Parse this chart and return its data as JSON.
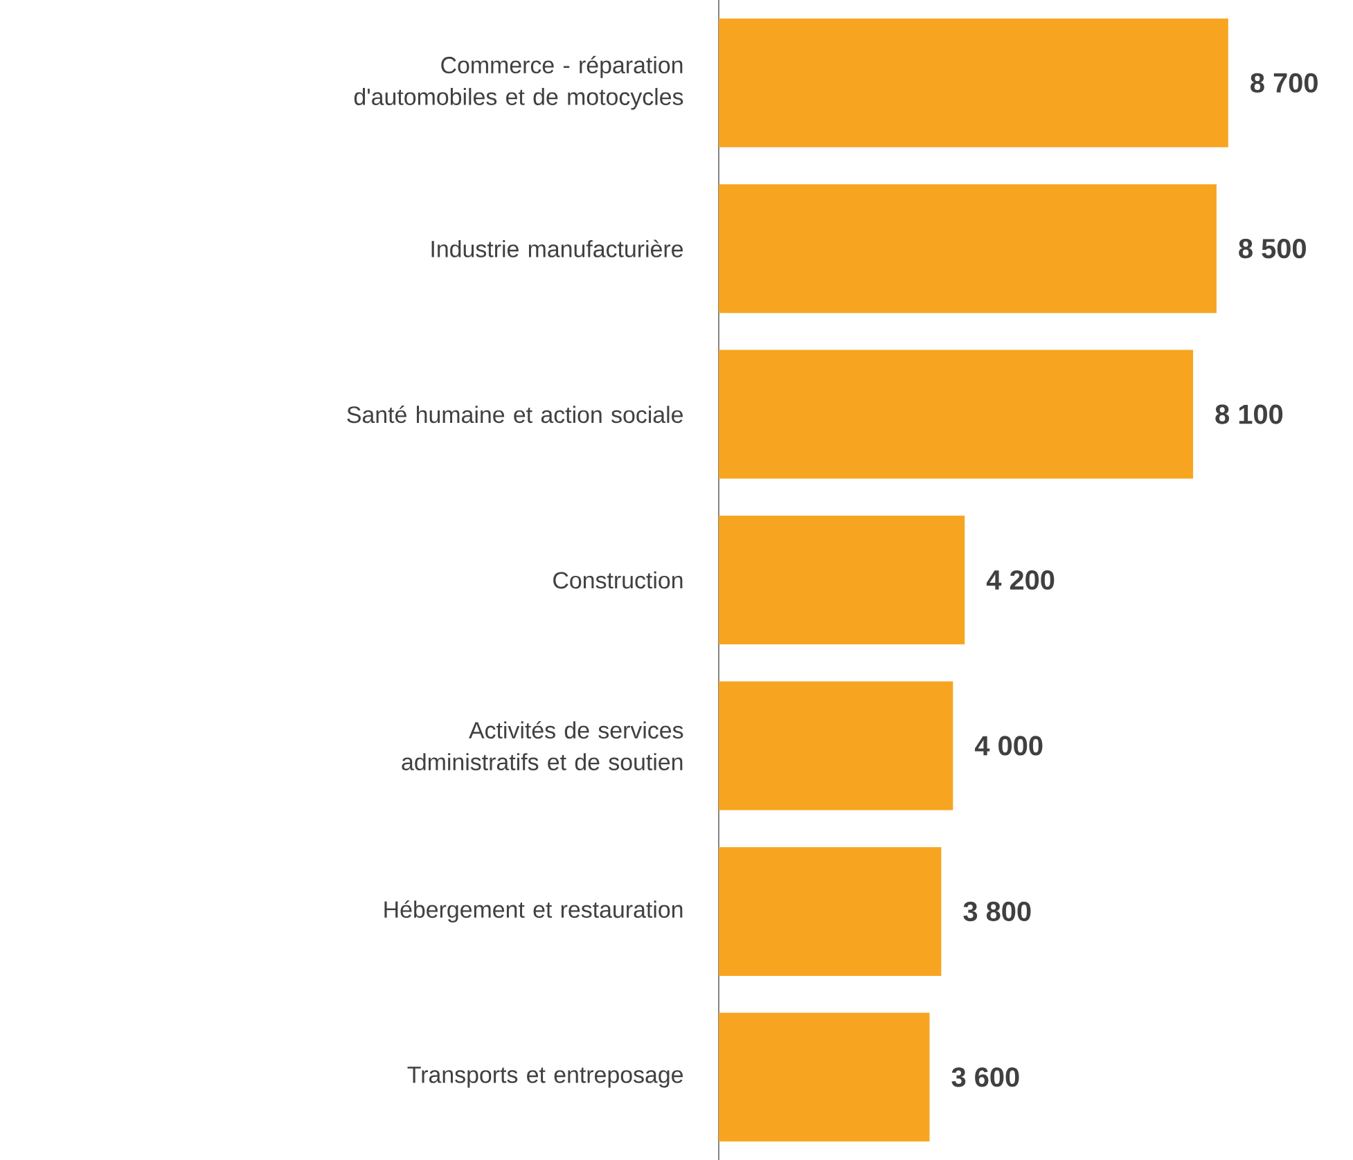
{
  "chart_data": {
    "type": "bar",
    "orientation": "horizontal",
    "categories": [
      "Commerce - réparation d'automobiles et de motocycles",
      "Industrie manufacturière",
      "Santé humaine et action sociale",
      "Construction",
      "Activités de services administratifs et de soutien",
      "Hébergement et restauration",
      "Transports et entreposage"
    ],
    "values": [
      8700,
      8500,
      8100,
      4200,
      4000,
      3800,
      3600
    ],
    "value_labels": [
      "8 700",
      "8 500",
      "8 100",
      "4 200",
      "4 000",
      "3 800",
      "3 600"
    ],
    "color": "#f7a520"
  }
}
